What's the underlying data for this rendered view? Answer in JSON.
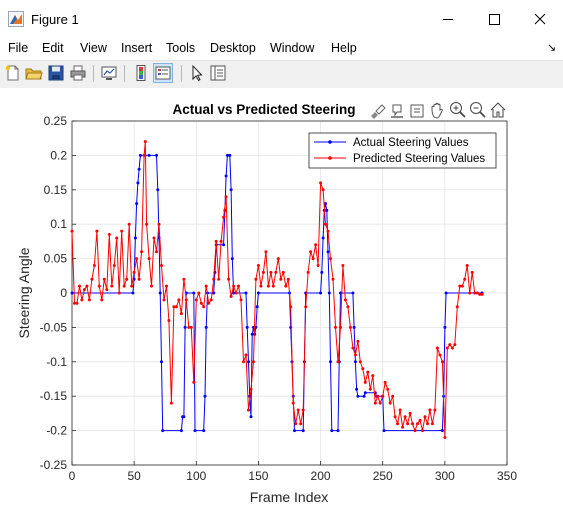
{
  "window": {
    "title": "Figure 1"
  },
  "menu": [
    "File",
    "Edit",
    "View",
    "Insert",
    "Tools",
    "Desktop",
    "Window",
    "Help"
  ],
  "toolbar": [
    "new-figure-icon",
    "open-file-icon",
    "save-icon",
    "print-icon",
    "link-plot-icon",
    "insert-colorbar-icon",
    "insert-legend-icon",
    "select-arrow-icon",
    "property-inspector-icon"
  ],
  "axes_toolbar": [
    "brush-icon",
    "data-tips-icon",
    "export-icon",
    "pan-icon",
    "zoom-in-icon",
    "zoom-out-icon",
    "home-icon"
  ],
  "colors": {
    "actual": "#0000ff",
    "predicted": "#ff0000",
    "grid": "#e3e3e3"
  },
  "chart_data": {
    "type": "line",
    "title": "Actual vs Predicted Steering",
    "xlabel": "Frame Index",
    "ylabel": "Steering Angle",
    "xlim": [
      0,
      350
    ],
    "ylim": [
      -0.25,
      0.25
    ],
    "xticks": [
      "0",
      "50",
      "100",
      "150",
      "200",
      "250",
      "300",
      "350"
    ],
    "yticks": [
      "-0.25",
      "-0.2",
      "-0.15",
      "-0.1",
      "-0.05",
      "0",
      "0.05",
      "0.1",
      "0.15",
      "0.2",
      "0.25"
    ],
    "grid": true,
    "legend_position": "top-right",
    "series": [
      {
        "name": "Actual Steering Values",
        "color": "#0000ff",
        "points": [
          [
            0,
            0
          ],
          [
            49,
            0
          ],
          [
            50,
            0.02
          ],
          [
            51,
            0.08
          ],
          [
            52,
            0.13
          ],
          [
            53,
            0.16
          ],
          [
            54,
            0.18
          ],
          [
            55,
            0.2
          ],
          [
            62,
            0.2
          ],
          [
            68,
            0.2
          ],
          [
            69,
            0.15
          ],
          [
            70,
            0.08
          ],
          [
            71,
            0
          ],
          [
            72,
            -0.1
          ],
          [
            73,
            -0.2
          ],
          [
            88,
            -0.2
          ],
          [
            89,
            -0.18
          ],
          [
            90,
            -0.18
          ],
          [
            91,
            -0.05
          ],
          [
            92,
            0
          ],
          [
            98,
            0
          ],
          [
            99,
            -0.2
          ],
          [
            106,
            -0.2
          ],
          [
            107,
            -0.15
          ],
          [
            108,
            -0.05
          ],
          [
            109,
            0
          ],
          [
            114,
            0
          ],
          [
            115,
            0.03
          ],
          [
            116,
            0.07
          ],
          [
            122,
            0.07
          ],
          [
            123,
            0.12
          ],
          [
            124,
            0.17
          ],
          [
            125,
            0.2
          ],
          [
            127,
            0.2
          ],
          [
            128,
            0.15
          ],
          [
            129,
            0.05
          ],
          [
            130,
            0
          ],
          [
            140,
            0
          ],
          [
            141,
            -0.05
          ],
          [
            142,
            -0.1
          ],
          [
            143,
            -0.15
          ],
          [
            144,
            -0.18
          ],
          [
            145,
            -0.06
          ],
          [
            146,
            -0.05
          ],
          [
            147,
            -0.06
          ],
          [
            148,
            -0.05
          ],
          [
            149,
            -0.02
          ],
          [
            150,
            0
          ],
          [
            175,
            0
          ],
          [
            176,
            -0.05
          ],
          [
            177,
            -0.1
          ],
          [
            178,
            -0.15
          ],
          [
            179,
            -0.2
          ],
          [
            186,
            -0.2
          ],
          [
            187,
            -0.1
          ],
          [
            188,
            0
          ],
          [
            200,
            0
          ],
          [
            201,
            0.03
          ],
          [
            202,
            0.08
          ],
          [
            203,
            0.12
          ],
          [
            204,
            0.13
          ],
          [
            205,
            0.12
          ],
          [
            206,
            0.06
          ],
          [
            207,
            0
          ],
          [
            208,
            -0.1
          ],
          [
            209,
            -0.2
          ],
          [
            214,
            -0.2
          ],
          [
            215,
            -0.1
          ],
          [
            216,
            0
          ],
          [
            226,
            0
          ],
          [
            227,
            -0.05
          ],
          [
            228,
            -0.1
          ],
          [
            229,
            -0.14
          ],
          [
            230,
            -0.15
          ],
          [
            235,
            -0.15
          ],
          [
            236,
            -0.145
          ],
          [
            244,
            -0.145
          ],
          [
            245,
            -0.15
          ],
          [
            250,
            -0.15
          ],
          [
            251,
            -0.2
          ],
          [
            298,
            -0.2
          ],
          [
            299,
            -0.15
          ],
          [
            300,
            -0.05
          ],
          [
            301,
            0
          ],
          [
            330,
            0
          ]
        ]
      },
      {
        "name": "Predicted Steering Values",
        "color": "#ff0000",
        "points": [
          [
            0,
            0.09
          ],
          [
            2,
            -0.015
          ],
          [
            4,
            -0.015
          ],
          [
            6,
            0.01
          ],
          [
            8,
            -0.01
          ],
          [
            10,
            0.005
          ],
          [
            12,
            0.01
          ],
          [
            14,
            -0.01
          ],
          [
            16,
            0.02
          ],
          [
            18,
            0.04
          ],
          [
            20,
            0.09
          ],
          [
            22,
            0.01
          ],
          [
            24,
            -0.01
          ],
          [
            26,
            0.02
          ],
          [
            28,
            0.005
          ],
          [
            30,
            0.085
          ],
          [
            32,
            0.01
          ],
          [
            34,
            0.04
          ],
          [
            36,
            0.08
          ],
          [
            38,
            0
          ],
          [
            40,
            0.09
          ],
          [
            42,
            0.01
          ],
          [
            44,
            0.02
          ],
          [
            46,
            0.1
          ],
          [
            48,
            0.01
          ],
          [
            50,
            0.03
          ],
          [
            52,
            0.05
          ],
          [
            54,
            0.02
          ],
          [
            56,
            0.06
          ],
          [
            58,
            0.2
          ],
          [
            59,
            0.22
          ],
          [
            60,
            0.1
          ],
          [
            62,
            0.05
          ],
          [
            64,
            0.01
          ],
          [
            66,
            0.08
          ],
          [
            68,
            0.06
          ],
          [
            70,
            0.1
          ],
          [
            72,
            0.04
          ],
          [
            74,
            -0.01
          ],
          [
            76,
            0.01
          ],
          [
            78,
            -0.04
          ],
          [
            80,
            -0.16
          ],
          [
            82,
            -0.02
          ],
          [
            84,
            -0.02
          ],
          [
            86,
            -0.01
          ],
          [
            88,
            -0.03
          ],
          [
            90,
            0.02
          ],
          [
            92,
            -0.01
          ],
          [
            94,
            -0.05
          ],
          [
            96,
            -0.05
          ],
          [
            98,
            -0.13
          ],
          [
            100,
            -0.01
          ],
          [
            102,
            0
          ],
          [
            104,
            -0.015
          ],
          [
            106,
            -0.02
          ],
          [
            108,
            0.01
          ],
          [
            110,
            -0.015
          ],
          [
            112,
            -0.01
          ],
          [
            114,
            0.02
          ],
          [
            116,
            0.075
          ],
          [
            118,
            0.02
          ],
          [
            120,
            0.075
          ],
          [
            122,
            0.11
          ],
          [
            124,
            0.14
          ],
          [
            126,
            0.02
          ],
          [
            128,
            -0.005
          ],
          [
            130,
            0.01
          ],
          [
            132,
            0
          ],
          [
            134,
            0.01
          ],
          [
            136,
            -0.01
          ],
          [
            138,
            -0.1
          ],
          [
            140,
            -0.09
          ],
          [
            142,
            -0.17
          ],
          [
            144,
            -0.14
          ],
          [
            146,
            -0.1
          ],
          [
            148,
            0.02
          ],
          [
            150,
            0.04
          ],
          [
            152,
            0.01
          ],
          [
            154,
            0.03
          ],
          [
            156,
            0.06
          ],
          [
            158,
            0.01
          ],
          [
            160,
            0.03
          ],
          [
            162,
            0.01
          ],
          [
            164,
            0.03
          ],
          [
            166,
            0.05
          ],
          [
            168,
            0.02
          ],
          [
            170,
            0.03
          ],
          [
            172,
            0.01
          ],
          [
            174,
            0.02
          ],
          [
            176,
            -0.02
          ],
          [
            178,
            -0.16
          ],
          [
            180,
            -0.19
          ],
          [
            182,
            -0.17
          ],
          [
            184,
            -0.19
          ],
          [
            186,
            -0.17
          ],
          [
            188,
            -0.02
          ],
          [
            190,
            0.03
          ],
          [
            192,
            0.06
          ],
          [
            194,
            0.05
          ],
          [
            196,
            0.07
          ],
          [
            198,
            0.04
          ],
          [
            200,
            0.16
          ],
          [
            202,
            0.15
          ],
          [
            204,
            0.1
          ],
          [
            206,
            0.09
          ],
          [
            208,
            0.05
          ],
          [
            210,
            0.02
          ],
          [
            212,
            -0.05
          ],
          [
            214,
            -0.1
          ],
          [
            216,
            -0.05
          ],
          [
            218,
            0.04
          ],
          [
            220,
            -0.01
          ],
          [
            222,
            -0.02
          ],
          [
            224,
            -0.05
          ],
          [
            226,
            -0.08
          ],
          [
            228,
            -0.09
          ],
          [
            230,
            -0.07
          ],
          [
            232,
            -0.1
          ],
          [
            234,
            -0.11
          ],
          [
            236,
            -0.13
          ],
          [
            238,
            -0.115
          ],
          [
            240,
            -0.14
          ],
          [
            242,
            -0.12
          ],
          [
            244,
            -0.16
          ],
          [
            246,
            -0.15
          ],
          [
            248,
            -0.16
          ],
          [
            250,
            -0.15
          ],
          [
            252,
            -0.13
          ],
          [
            254,
            -0.14
          ],
          [
            256,
            -0.16
          ],
          [
            258,
            -0.15
          ],
          [
            260,
            -0.18
          ],
          [
            262,
            -0.19
          ],
          [
            264,
            -0.17
          ],
          [
            266,
            -0.195
          ],
          [
            268,
            -0.18
          ],
          [
            270,
            -0.19
          ],
          [
            272,
            -0.175
          ],
          [
            274,
            -0.19
          ],
          [
            276,
            -0.2
          ],
          [
            278,
            -0.19
          ],
          [
            280,
            -0.185
          ],
          [
            282,
            -0.2
          ],
          [
            284,
            -0.18
          ],
          [
            286,
            -0.19
          ],
          [
            288,
            -0.17
          ],
          [
            290,
            -0.19
          ],
          [
            292,
            -0.17
          ],
          [
            294,
            -0.08
          ],
          [
            296,
            -0.09
          ],
          [
            298,
            -0.1
          ],
          [
            300,
            -0.21
          ],
          [
            302,
            -0.08
          ],
          [
            304,
            -0.075
          ],
          [
            306,
            -0.08
          ],
          [
            308,
            -0.075
          ],
          [
            310,
            -0.02
          ],
          [
            312,
            0.01
          ],
          [
            314,
            0.01
          ],
          [
            316,
            0.02
          ],
          [
            318,
            0.04
          ],
          [
            320,
            0
          ],
          [
            322,
            0.03
          ],
          [
            324,
            0
          ],
          [
            326,
            0
          ],
          [
            328,
            -0.002
          ],
          [
            330,
            -0.002
          ]
        ]
      }
    ]
  }
}
